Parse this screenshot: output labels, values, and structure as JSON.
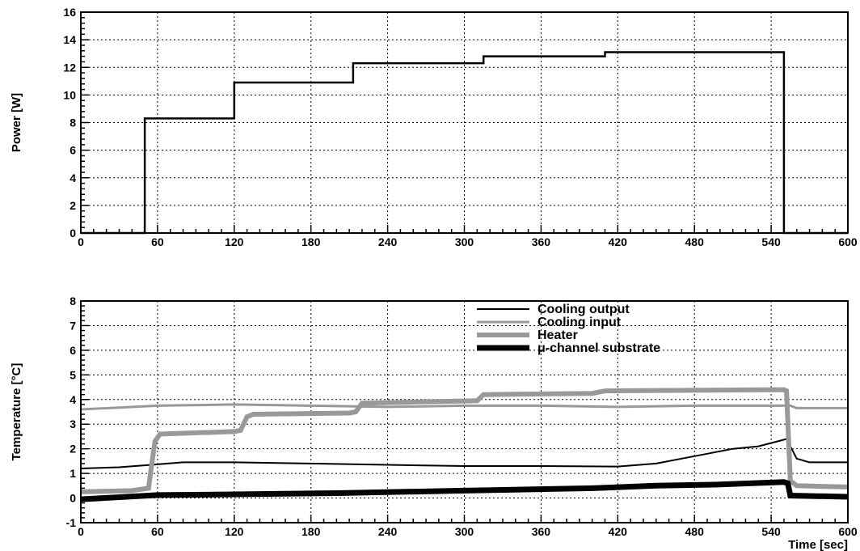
{
  "chart_data": [
    {
      "type": "line",
      "ylabel": "Power [W]",
      "xlabel": "",
      "xlim": [
        0,
        600
      ],
      "ylim": [
        0,
        16
      ],
      "x_ticks": [
        0,
        60,
        120,
        180,
        240,
        300,
        360,
        420,
        480,
        540,
        600
      ],
      "y_ticks": [
        0,
        2,
        4,
        6,
        8,
        10,
        12,
        14,
        16
      ],
      "grid": true,
      "series": [
        {
          "style": "step",
          "color": "#000000",
          "points": [
            [
              0,
              0
            ],
            [
              50,
              0
            ],
            [
              50,
              8.3
            ],
            [
              120,
              8.3
            ],
            [
              120,
              10.9
            ],
            [
              213,
              10.9
            ],
            [
              213,
              12.3
            ],
            [
              315,
              12.3
            ],
            [
              315,
              12.8
            ],
            [
              410,
              12.8
            ],
            [
              410,
              13.1
            ],
            [
              550,
              13.1
            ],
            [
              550,
              0
            ],
            [
              600,
              0
            ]
          ]
        }
      ]
    },
    {
      "type": "line",
      "ylabel": "Temperature [°C]",
      "xlabel": "Time [sec]",
      "xlim": [
        0,
        600
      ],
      "ylim": [
        -1,
        8
      ],
      "x_ticks": [
        0,
        60,
        120,
        180,
        240,
        300,
        360,
        420,
        480,
        540,
        600
      ],
      "y_ticks": [
        -1,
        0,
        1,
        2,
        3,
        4,
        5,
        6,
        7,
        8
      ],
      "grid": true,
      "legend_position": "top-right",
      "series": [
        {
          "name": "Cooling output",
          "color": "#000000",
          "points": [
            [
              0,
              1.2
            ],
            [
              30,
              1.25
            ],
            [
              55,
              1.35
            ],
            [
              80,
              1.45
            ],
            [
              120,
              1.45
            ],
            [
              180,
              1.4
            ],
            [
              240,
              1.35
            ],
            [
              300,
              1.3
            ],
            [
              360,
              1.3
            ],
            [
              420,
              1.28
            ],
            [
              450,
              1.4
            ],
            [
              470,
              1.6
            ],
            [
              490,
              1.8
            ],
            [
              510,
              2.0
            ],
            [
              530,
              2.1
            ],
            [
              545,
              2.3
            ],
            [
              552,
              2.4
            ],
            [
              555,
              2.1
            ],
            [
              560,
              1.6
            ],
            [
              570,
              1.45
            ],
            [
              600,
              1.45
            ]
          ]
        },
        {
          "name": "Cooling input",
          "color": "#999999",
          "points": [
            [
              0,
              3.6
            ],
            [
              60,
              3.75
            ],
            [
              120,
              3.8
            ],
            [
              180,
              3.75
            ],
            [
              240,
              3.7
            ],
            [
              300,
              3.75
            ],
            [
              360,
              3.75
            ],
            [
              420,
              3.7
            ],
            [
              480,
              3.75
            ],
            [
              540,
              3.75
            ],
            [
              555,
              3.75
            ],
            [
              560,
              3.65
            ],
            [
              600,
              3.65
            ]
          ]
        },
        {
          "name": "Heater",
          "color": "#999999",
          "points": [
            [
              0,
              0.25
            ],
            [
              40,
              0.3
            ],
            [
              53,
              0.4
            ],
            [
              55,
              1.2
            ],
            [
              58,
              2.3
            ],
            [
              62,
              2.6
            ],
            [
              120,
              2.7
            ],
            [
              125,
              2.75
            ],
            [
              130,
              3.3
            ],
            [
              135,
              3.4
            ],
            [
              210,
              3.45
            ],
            [
              215,
              3.5
            ],
            [
              220,
              3.85
            ],
            [
              310,
              3.95
            ],
            [
              315,
              4.2
            ],
            [
              400,
              4.25
            ],
            [
              410,
              4.35
            ],
            [
              550,
              4.4
            ],
            [
              552,
              4.35
            ],
            [
              555,
              0.7
            ],
            [
              560,
              0.5
            ],
            [
              600,
              0.45
            ]
          ]
        },
        {
          "name": "μ-channel substrate",
          "color": "#000000",
          "points": [
            [
              0,
              -0.05
            ],
            [
              60,
              0.12
            ],
            [
              120,
              0.15
            ],
            [
              200,
              0.2
            ],
            [
              300,
              0.3
            ],
            [
              400,
              0.4
            ],
            [
              450,
              0.5
            ],
            [
              500,
              0.55
            ],
            [
              550,
              0.65
            ],
            [
              553,
              0.6
            ],
            [
              555,
              0.1
            ],
            [
              600,
              0.05
            ]
          ]
        }
      ]
    }
  ]
}
